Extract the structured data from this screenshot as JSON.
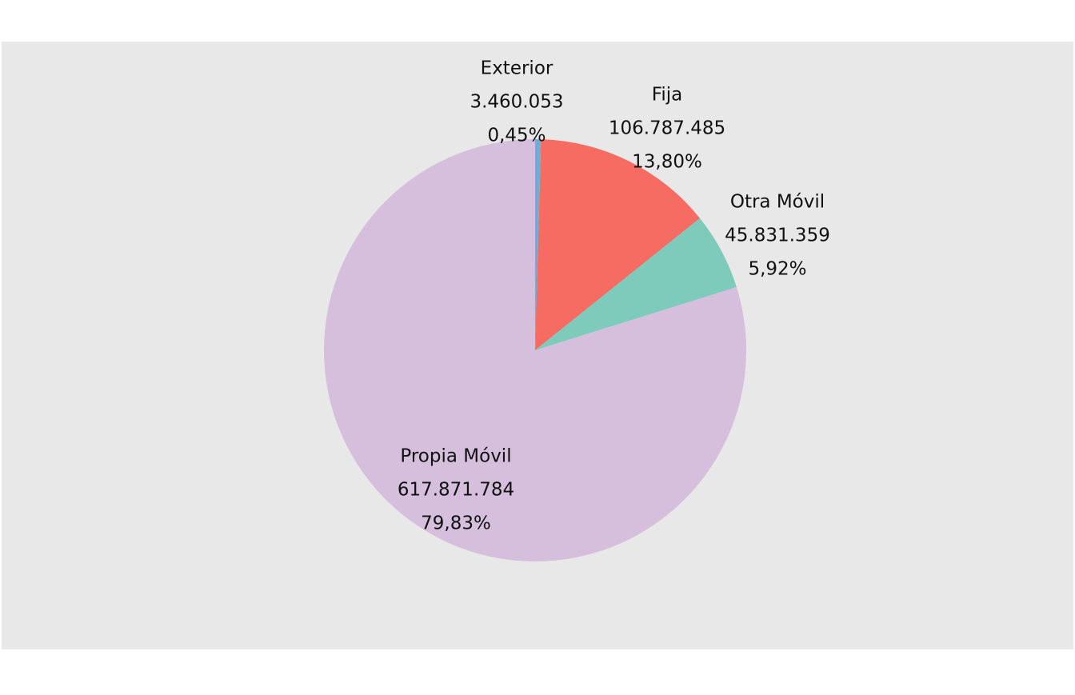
{
  "chart_data": {
    "type": "pie",
    "title": "",
    "start": "12 o'clock",
    "direction": "clockwise",
    "slices": [
      {
        "name": "Exterior",
        "value": 3460053,
        "value_label": "3.460.053",
        "percent": 0.45,
        "percent_label": "0,45%",
        "color": "#6baed6"
      },
      {
        "name": "Fija",
        "value": 106787485,
        "value_label": "106.787.485",
        "percent": 13.8,
        "percent_label": "13,80%",
        "color": "#f66b62"
      },
      {
        "name": "Otra Móvil",
        "value": 45831359,
        "value_label": "45.831.359",
        "percent": 5.92,
        "percent_label": "5,92%",
        "color": "#7ecbbb"
      },
      {
        "name": "Propia Móvil",
        "value": 617871784,
        "value_label": "617.871.784",
        "percent": 79.83,
        "percent_label": "79,83%",
        "color": "#d5bfdd"
      }
    ],
    "panel_background": "#e8e8e8",
    "page_background": "#ffffff"
  }
}
